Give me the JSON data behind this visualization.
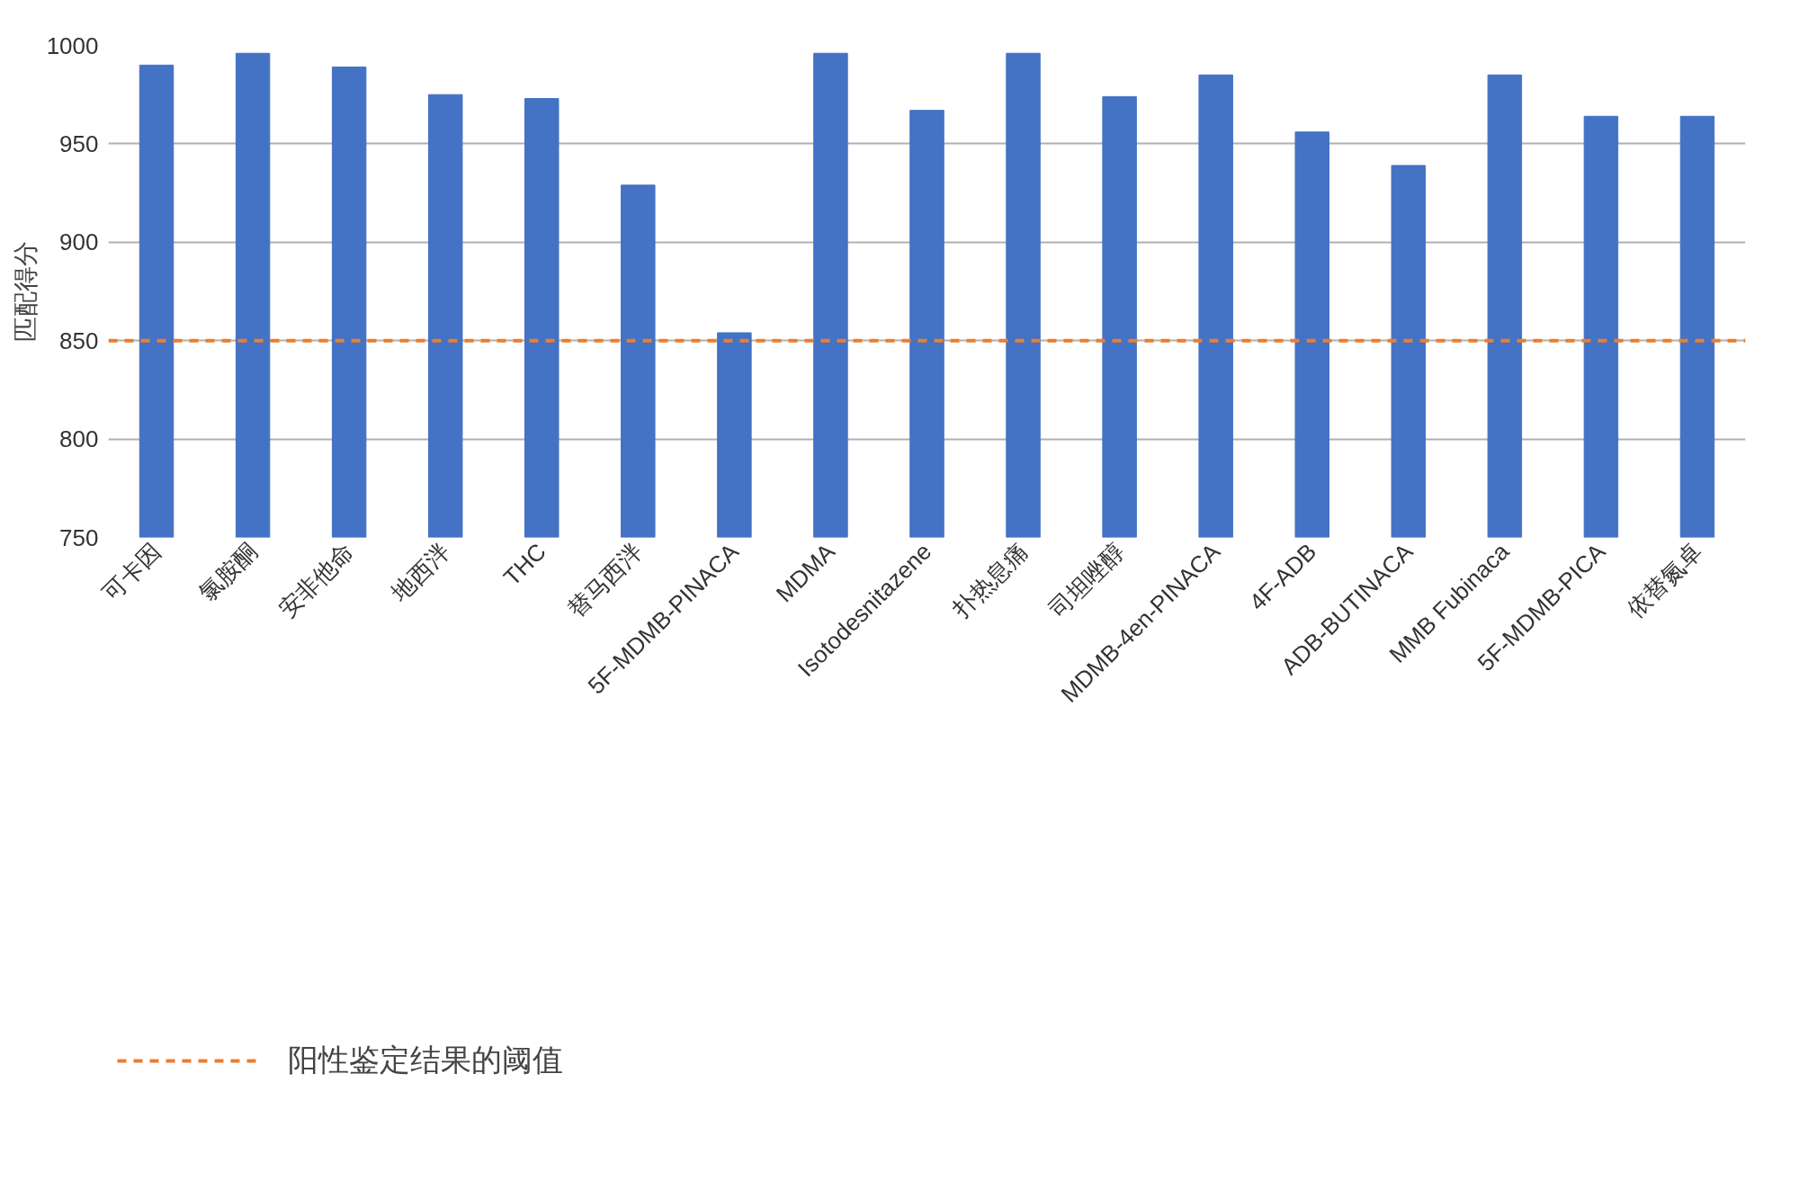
{
  "chart_data": {
    "type": "bar",
    "ylabel": "匹配得分",
    "categories": [
      "可卡因",
      "氯胺酮",
      "安非他命",
      "地西泮",
      "THC",
      "替马西泮",
      "5F-MDMB-PINACA",
      "MDMA",
      "Isotodesnitazene",
      "扑热息痛",
      "司坦唑醇",
      "MDMB-4en-PINACA",
      "4F-ADB",
      "ADB-BUTINACA",
      "MMB Fubinaca",
      "5F-MDMB-PICA",
      "依替氮卓"
    ],
    "values": [
      990,
      996,
      989,
      975,
      973,
      929,
      854,
      996,
      967,
      996,
      974,
      985,
      956,
      939,
      985,
      964,
      964
    ],
    "color": "#4472c4",
    "ylim": [
      750,
      1000
    ],
    "yticks": [
      750,
      800,
      850,
      900,
      950,
      1000
    ],
    "grid": "y",
    "ref_lines": [
      {
        "axis": "y",
        "value": 850,
        "label": "阳性鉴定结果的阈值",
        "color": "#ed7d31",
        "line_style": "dashed"
      }
    ],
    "legend": "bottom left"
  }
}
